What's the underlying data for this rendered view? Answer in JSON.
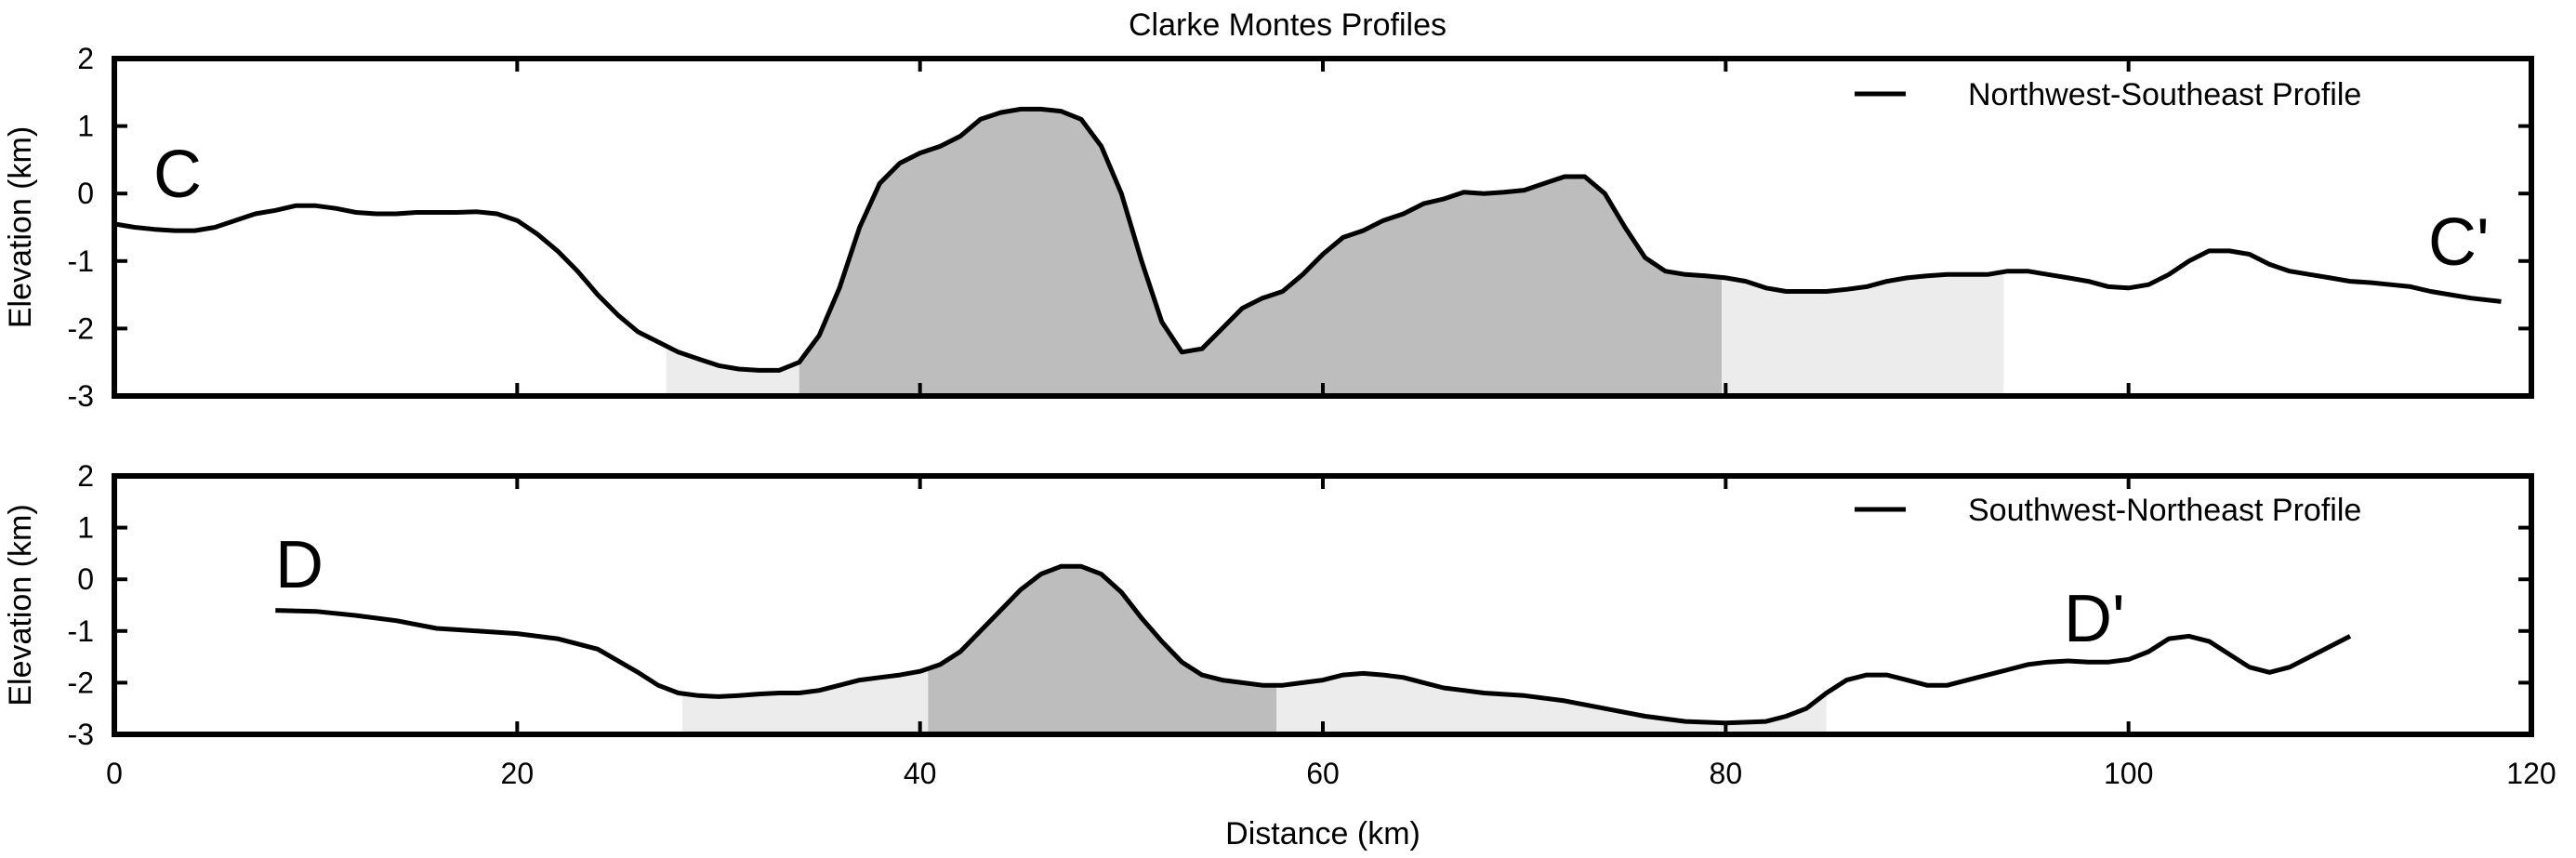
{
  "chart_data": {
    "type": "area",
    "title": "Clarke Montes Profiles",
    "xlabel": "Distance (km)",
    "xlim": [
      0,
      120
    ],
    "x_ticks": [
      0,
      20,
      40,
      60,
      80,
      100,
      120
    ],
    "grid": false,
    "legend_position": "top-right",
    "panels": [
      {
        "id": "top",
        "ylabel": "Elevation (km)",
        "ylim": [
          -3,
          2
        ],
        "y_ticks": [
          2,
          1,
          0,
          -1,
          -2,
          -3
        ],
        "legend": "Northwest-Southeast Profile",
        "start_label": "C",
        "end_label": "C'",
        "shaded_regions": [
          {
            "x": [
              27.4,
              34.0
            ],
            "shade": "light"
          },
          {
            "x": [
              34.0,
              79.8
            ],
            "shade": "dark"
          },
          {
            "x": [
              79.8,
              93.8
            ],
            "shade": "light"
          }
        ],
        "series": [
          {
            "x": [
              0,
              1,
              2,
              3,
              4,
              5,
              6,
              7,
              8,
              9,
              10,
              11,
              12,
              13,
              14,
              15,
              16,
              17,
              18,
              19,
              20,
              21,
              22,
              23,
              24,
              25,
              26,
              27,
              28,
              29,
              30,
              31,
              32,
              33,
              34,
              35,
              36,
              37,
              38,
              39,
              40,
              41,
              42,
              43,
              44,
              45,
              46,
              47,
              48,
              49,
              50,
              51,
              52,
              53,
              54,
              55,
              56,
              57,
              58,
              59,
              60,
              61,
              62,
              63,
              64,
              65,
              66,
              67,
              68,
              69,
              70,
              71,
              72,
              73,
              74,
              75,
              76,
              77,
              78,
              79,
              80,
              81,
              82,
              83,
              84,
              85,
              86,
              87,
              88,
              89,
              90,
              91,
              92,
              93,
              94,
              95,
              96,
              97,
              98,
              99,
              100,
              101,
              102,
              103,
              104,
              105,
              106,
              107,
              108,
              109,
              110,
              111,
              112,
              113,
              114,
              115,
              116,
              117,
              118.5
            ],
            "y": [
              -0.45,
              -0.5,
              -0.53,
              -0.55,
              -0.55,
              -0.5,
              -0.4,
              -0.3,
              -0.25,
              -0.18,
              -0.18,
              -0.22,
              -0.28,
              -0.3,
              -0.3,
              -0.28,
              -0.28,
              -0.28,
              -0.27,
              -0.3,
              -0.4,
              -0.6,
              -0.85,
              -1.15,
              -1.5,
              -1.8,
              -2.05,
              -2.2,
              -2.35,
              -2.45,
              -2.55,
              -2.6,
              -2.62,
              -2.62,
              -2.5,
              -2.1,
              -1.4,
              -0.5,
              0.15,
              0.45,
              0.6,
              0.7,
              0.85,
              1.1,
              1.2,
              1.25,
              1.25,
              1.22,
              1.1,
              0.7,
              0.0,
              -1.0,
              -1.9,
              -2.35,
              -2.3,
              -2.0,
              -1.7,
              -1.55,
              -1.45,
              -1.2,
              -0.9,
              -0.65,
              -0.55,
              -0.4,
              -0.3,
              -0.15,
              -0.08,
              0.02,
              0.0,
              0.02,
              0.05,
              0.15,
              0.25,
              0.25,
              0.0,
              -0.5,
              -0.95,
              -1.15,
              -1.2,
              -1.22,
              -1.25,
              -1.3,
              -1.4,
              -1.45,
              -1.45,
              -1.45,
              -1.42,
              -1.38,
              -1.3,
              -1.25,
              -1.22,
              -1.2,
              -1.2,
              -1.2,
              -1.15,
              -1.15,
              -1.2,
              -1.25,
              -1.3,
              -1.38,
              -1.4,
              -1.35,
              -1.2,
              -1.0,
              -0.85,
              -0.85,
              -0.9,
              -1.05,
              -1.15,
              -1.2,
              -1.25,
              -1.3,
              -1.32,
              -1.35,
              -1.38,
              -1.45,
              -1.5,
              -1.55,
              -1.6
            ]
          }
        ]
      },
      {
        "id": "bottom",
        "ylabel": "Elevation (km)",
        "ylim": [
          -3,
          2
        ],
        "y_ticks": [
          2,
          1,
          0,
          -1,
          -2,
          -3
        ],
        "legend": "Southwest-Northeast Profile",
        "start_label": "D",
        "end_label": "D'",
        "shaded_regions": [
          {
            "x": [
              28.2,
              40.4
            ],
            "shade": "light"
          },
          {
            "x": [
              40.4,
              57.7
            ],
            "shade": "dark"
          },
          {
            "x": [
              57.7,
              85.0
            ],
            "shade": "light"
          }
        ],
        "series": [
          {
            "x": [
              8,
              10,
              12,
              14,
              16,
              18,
              20,
              22,
              24,
              26,
              27,
              28,
              29,
              30,
              31,
              32,
              33,
              34,
              35,
              36,
              37,
              38,
              39,
              40,
              41,
              42,
              43,
              44,
              45,
              46,
              47,
              48,
              49,
              50,
              51,
              52,
              53,
              54,
              55,
              56,
              57,
              58,
              59,
              60,
              61,
              62,
              63,
              64,
              65,
              66,
              67,
              68,
              70,
              72,
              74,
              76,
              78,
              80,
              82,
              83,
              84,
              85,
              86,
              87,
              88,
              89,
              90,
              91,
              92,
              93,
              94,
              95,
              96,
              97,
              98,
              99,
              100,
              101,
              102,
              103,
              104,
              105,
              106,
              107,
              108,
              109,
              110,
              111
            ],
            "y": [
              -0.6,
              -0.62,
              -0.7,
              -0.8,
              -0.95,
              -1.0,
              -1.05,
              -1.15,
              -1.35,
              -1.8,
              -2.05,
              -2.2,
              -2.25,
              -2.27,
              -2.25,
              -2.22,
              -2.2,
              -2.2,
              -2.15,
              -2.05,
              -1.95,
              -1.9,
              -1.85,
              -1.78,
              -1.65,
              -1.4,
              -1.0,
              -0.6,
              -0.2,
              0.1,
              0.25,
              0.25,
              0.1,
              -0.25,
              -0.75,
              -1.2,
              -1.6,
              -1.85,
              -1.95,
              -2.0,
              -2.05,
              -2.05,
              -2.0,
              -1.95,
              -1.85,
              -1.82,
              -1.85,
              -1.9,
              -2.0,
              -2.1,
              -2.15,
              -2.2,
              -2.25,
              -2.35,
              -2.5,
              -2.65,
              -2.75,
              -2.78,
              -2.75,
              -2.65,
              -2.5,
              -2.2,
              -1.95,
              -1.85,
              -1.85,
              -1.95,
              -2.05,
              -2.05,
              -1.95,
              -1.85,
              -1.75,
              -1.65,
              -1.6,
              -1.58,
              -1.6,
              -1.6,
              -1.55,
              -1.4,
              -1.15,
              -1.1,
              -1.2,
              -1.45,
              -1.7,
              -1.8,
              -1.7,
              -1.5,
              -1.3,
              -1.1
            ]
          }
        ]
      }
    ]
  },
  "colors": {
    "line": "#000000",
    "shade_dark": "#bdbdbd",
    "shade_light": "#ececec",
    "frame": "#000000",
    "background": "#ffffff"
  }
}
